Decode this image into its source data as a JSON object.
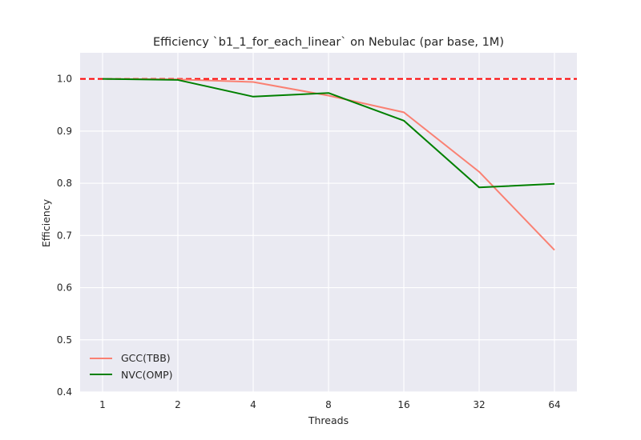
{
  "chart_data": {
    "type": "line",
    "title": "Efficiency `b1_1_for_each_linear` on Nebulac (par base, 1M)",
    "xlabel": "Threads",
    "ylabel": "Efficiency",
    "categories": [
      "1",
      "2",
      "4",
      "8",
      "16",
      "32",
      "64"
    ],
    "ylim": [
      0.4,
      1.05
    ],
    "yticks": [
      "0.4",
      "0.5",
      "0.6",
      "0.7",
      "0.8",
      "0.9",
      "1.0"
    ],
    "grid": true,
    "legend_position": "lower-left",
    "reference_line": {
      "y": 1.0,
      "style": "dashed",
      "color": "#ff0000"
    },
    "series": [
      {
        "name": "GCC(TBB)",
        "color": "#fa8072",
        "values": [
          1.0,
          0.999,
          0.994,
          0.968,
          0.936,
          0.822,
          0.672
        ]
      },
      {
        "name": "NVC(OMP)",
        "color": "#008000",
        "values": [
          1.0,
          0.998,
          0.966,
          0.973,
          0.92,
          0.792,
          0.799
        ]
      }
    ]
  }
}
